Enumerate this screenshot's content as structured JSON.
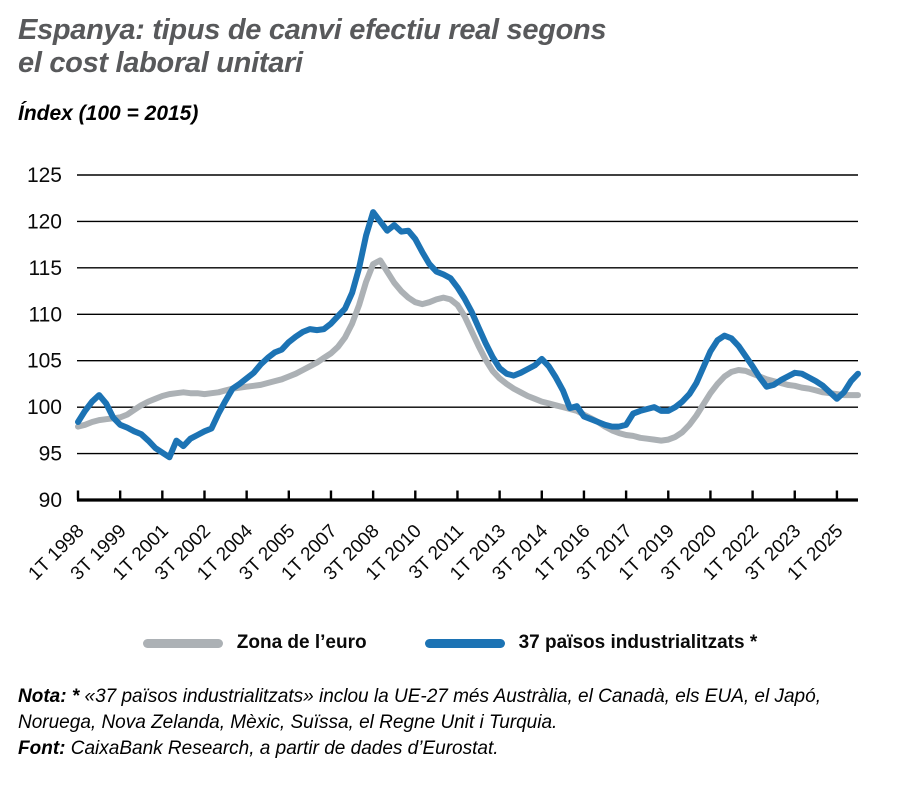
{
  "title": {
    "lines": [
      "Espanya: tipus de canvi efectiu real segons",
      "el cost laboral unitari"
    ],
    "color": "#58595B"
  },
  "subtitle": "Índex (100 = 2015)",
  "legend": [
    {
      "label": "Zona de l’euro",
      "color": "#ACB1B5"
    },
    {
      "label": "37 països industrialitzats *",
      "color": "#1C73B4"
    }
  ],
  "note": {
    "label": "Nota: *",
    "text": " «37 països industrialitzats» inclou la UE-27 més Austràlia, el Canadà, els EUA, el Japó, Noruega, Nova Zelanda, Mèxic, Suïssa, el Regne Unit i Turquia."
  },
  "source": {
    "label": "Font:",
    "text": " CaixaBank Research, a partir de dades d’Eurostat."
  },
  "chart_data": {
    "type": "line",
    "title": "Espanya: tipus de canvi efectiu real segons el cost laboral unitari",
    "subtitle": "Índex (100 = 2015)",
    "x_unit": "trimestre",
    "x_start": "1T 1998",
    "x_end": "4T 2025",
    "tick_every": 6,
    "x_tick_labels": [
      "1T 1998",
      "3T 1999",
      "1T 2001",
      "3T 2002",
      "1T 2004",
      "3T 2005",
      "1T 2007",
      "3T 2008",
      "1T 2010",
      "3T 2011",
      "1T 2013",
      "3T 2014",
      "1T 2016",
      "3T 2017",
      "1T 2019",
      "3T 2020",
      "1T 2022",
      "3T 2023",
      "1T 2025"
    ],
    "ylim": [
      90,
      125
    ],
    "yticks": [
      90,
      95,
      100,
      105,
      110,
      115,
      120,
      125
    ],
    "grid": true,
    "legend_position": "bottom",
    "series": [
      {
        "name": "Zona de l’euro",
        "color": "#ACB1B5",
        "values": [
          97.9,
          98.1,
          98.4,
          98.6,
          98.7,
          98.8,
          98.9,
          99.2,
          99.7,
          100.2,
          100.6,
          100.9,
          101.2,
          101.4,
          101.5,
          101.6,
          101.5,
          101.5,
          101.4,
          101.5,
          101.6,
          101.8,
          102.0,
          102.1,
          102.2,
          102.3,
          102.4,
          102.6,
          102.8,
          103.0,
          103.3,
          103.6,
          104.0,
          104.4,
          104.8,
          105.3,
          105.8,
          106.5,
          107.5,
          109.0,
          111.0,
          113.5,
          115.4,
          115.8,
          114.6,
          113.4,
          112.5,
          111.8,
          111.3,
          111.1,
          111.3,
          111.6,
          111.8,
          111.6,
          111.0,
          109.8,
          108.2,
          106.6,
          105.1,
          103.9,
          103.1,
          102.5,
          102.0,
          101.6,
          101.2,
          100.9,
          100.6,
          100.4,
          100.2,
          100.0,
          99.8,
          99.6,
          99.2,
          98.8,
          98.4,
          97.9,
          97.5,
          97.2,
          97.0,
          96.9,
          96.7,
          96.6,
          96.5,
          96.4,
          96.5,
          96.8,
          97.3,
          98.1,
          99.1,
          100.3,
          101.5,
          102.5,
          103.3,
          103.8,
          104.0,
          103.9,
          103.6,
          103.3,
          103.0,
          102.8,
          102.6,
          102.4,
          102.3,
          102.1,
          102.0,
          101.8,
          101.6,
          101.5,
          101.4,
          101.3,
          101.3,
          101.3
        ]
      },
      {
        "name": "37 països industrialitzats *",
        "color": "#1C73B4",
        "values": [
          98.4,
          99.6,
          100.6,
          101.3,
          100.4,
          98.9,
          98.1,
          97.8,
          97.4,
          97.1,
          96.4,
          95.6,
          95.1,
          94.6,
          96.4,
          95.8,
          96.6,
          97.0,
          97.4,
          97.7,
          99.3,
          100.7,
          102.0,
          102.5,
          103.1,
          103.7,
          104.6,
          105.3,
          105.9,
          106.2,
          107.0,
          107.6,
          108.1,
          108.4,
          108.3,
          108.4,
          109.0,
          109.8,
          110.6,
          112.3,
          115.0,
          118.5,
          121.0,
          120.0,
          119.0,
          119.6,
          118.9,
          119.0,
          118.1,
          116.7,
          115.4,
          114.6,
          114.3,
          113.9,
          112.9,
          111.7,
          110.3,
          108.6,
          106.9,
          105.4,
          104.2,
          103.6,
          103.4,
          103.7,
          104.1,
          104.5,
          105.2,
          104.4,
          103.2,
          101.8,
          99.9,
          100.1,
          99.0,
          98.7,
          98.4,
          98.1,
          97.9,
          97.9,
          98.1,
          99.3,
          99.6,
          99.8,
          100.0,
          99.6,
          99.6,
          100.0,
          100.6,
          101.4,
          102.6,
          104.3,
          106.0,
          107.2,
          107.7,
          107.4,
          106.6,
          105.5,
          104.4,
          103.2,
          102.2,
          102.4,
          102.9,
          103.3,
          103.7,
          103.6,
          103.2,
          102.8,
          102.3,
          101.6,
          100.9,
          101.6,
          102.8,
          103.6
        ]
      }
    ]
  }
}
